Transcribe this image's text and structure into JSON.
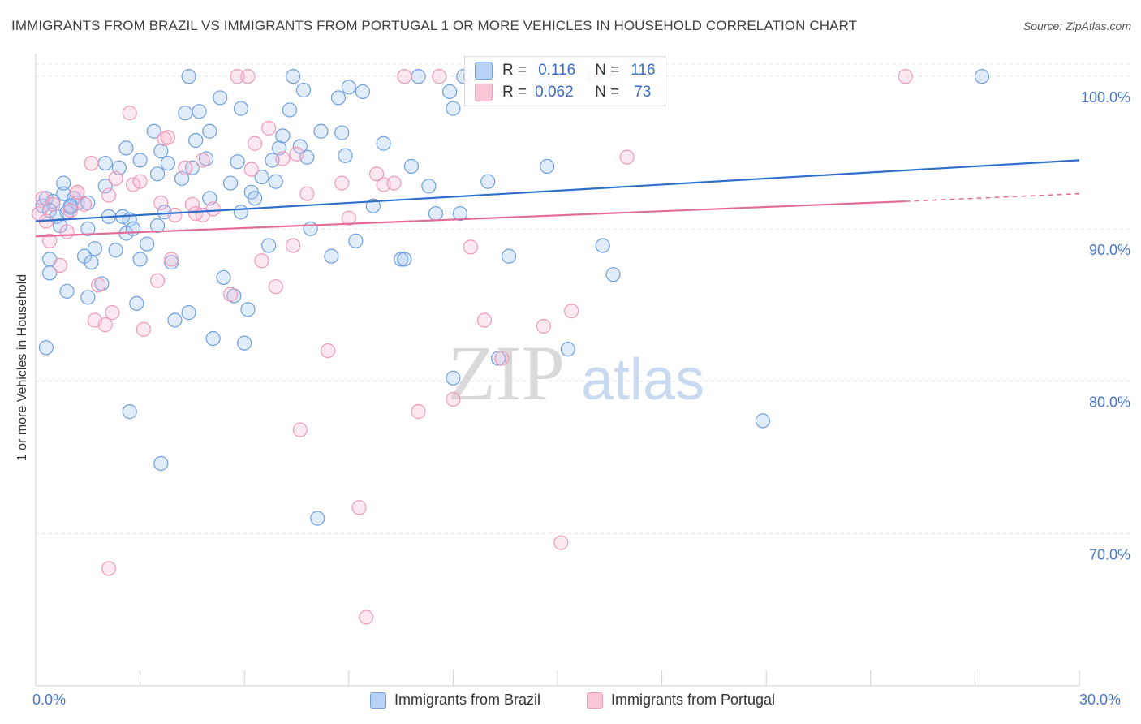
{
  "title": "IMMIGRANTS FROM BRAZIL VS IMMIGRANTS FROM PORTUGAL 1 OR MORE VEHICLES IN HOUSEHOLD CORRELATION CHART",
  "source": "Source: ZipAtlas.com",
  "watermark": {
    "zip": "ZIP",
    "atlas": "atlas"
  },
  "stats": [
    {
      "r_label": "R =",
      "r_value": "0.116",
      "n_label": "N =",
      "n_value": "116"
    },
    {
      "r_label": "R =",
      "r_value": "0.062",
      "n_label": "N =",
      "n_value": "73"
    }
  ],
  "chart_data": {
    "type": "scatter",
    "title": "IMMIGRANTS FROM BRAZIL VS IMMIGRANTS FROM PORTUGAL 1 OR MORE VEHICLES IN HOUSEHOLD CORRELATION CHART",
    "xlabel": "",
    "ylabel": "1 or more Vehicles in Household",
    "xlim": [
      0,
      30
    ],
    "ylim": [
      60,
      101.5
    ],
    "x_tick_labels": [
      "0.0%",
      "30.0%"
    ],
    "y_ticks": [
      70,
      80,
      90,
      100
    ],
    "y_tick_labels": [
      "70.0%",
      "80.0%",
      "90.0%",
      "100.0%"
    ],
    "grid": true,
    "series": [
      {
        "name": "Immigrants from Brazil",
        "color": "#6f9fe0",
        "line_color": "#2f6fcc",
        "trend": {
          "x0": 0,
          "y0": 90.5,
          "x1": 30,
          "y1": 94.5
        },
        "points": [
          [
            0.2,
            91.5
          ],
          [
            0.3,
            92.0
          ],
          [
            0.5,
            91.8
          ],
          [
            0.4,
            91.2
          ],
          [
            0.6,
            90.8
          ],
          [
            0.8,
            92.3
          ],
          [
            0.9,
            91.1
          ],
          [
            1.0,
            91.4
          ],
          [
            1.1,
            92.0
          ],
          [
            1.2,
            91.7
          ],
          [
            0.7,
            90.2
          ],
          [
            0.9,
            85.9
          ],
          [
            1.5,
            90.0
          ],
          [
            1.5,
            85.5
          ],
          [
            1.4,
            88.2
          ],
          [
            1.6,
            87.8
          ],
          [
            1.7,
            88.7
          ],
          [
            2.0,
            92.8
          ],
          [
            2.0,
            94.3
          ],
          [
            1.9,
            86.4
          ],
          [
            2.1,
            90.8
          ],
          [
            2.4,
            94.0
          ],
          [
            2.3,
            88.6
          ],
          [
            2.5,
            90.8
          ],
          [
            2.6,
            89.7
          ],
          [
            2.7,
            90.6
          ],
          [
            2.8,
            90.0
          ],
          [
            2.9,
            85.1
          ],
          [
            2.6,
            95.3
          ],
          [
            3.0,
            94.5
          ],
          [
            3.2,
            89.0
          ],
          [
            3.4,
            96.4
          ],
          [
            3.5,
            93.6
          ],
          [
            3.6,
            95.1
          ],
          [
            3.7,
            91.1
          ],
          [
            3.8,
            94.3
          ],
          [
            3.9,
            87.8
          ],
          [
            4.0,
            84.0
          ],
          [
            4.2,
            93.3
          ],
          [
            4.4,
            84.5
          ],
          [
            4.3,
            97.6
          ],
          [
            4.5,
            94.0
          ],
          [
            4.6,
            95.8
          ],
          [
            4.7,
            97.7
          ],
          [
            4.9,
            94.6
          ],
          [
            5.0,
            96.4
          ],
          [
            5.1,
            82.8
          ],
          [
            5.3,
            98.6
          ],
          [
            5.4,
            86.8
          ],
          [
            5.6,
            93.0
          ],
          [
            5.7,
            85.6
          ],
          [
            5.8,
            94.4
          ],
          [
            5.9,
            97.9
          ],
          [
            6.0,
            82.5
          ],
          [
            6.1,
            84.7
          ],
          [
            6.2,
            92.4
          ],
          [
            6.3,
            92.0
          ],
          [
            6.5,
            93.4
          ],
          [
            6.7,
            88.9
          ],
          [
            6.8,
            94.5
          ],
          [
            6.9,
            93.1
          ],
          [
            7.0,
            95.3
          ],
          [
            7.1,
            96.1
          ],
          [
            7.3,
            97.8
          ],
          [
            7.4,
            100.0
          ],
          [
            7.6,
            95.4
          ],
          [
            7.7,
            99.1
          ],
          [
            7.8,
            94.7
          ],
          [
            7.9,
            90.0
          ],
          [
            8.1,
            71.0
          ],
          [
            8.2,
            96.4
          ],
          [
            8.5,
            88.2
          ],
          [
            8.7,
            98.6
          ],
          [
            8.8,
            96.3
          ],
          [
            8.9,
            94.8
          ],
          [
            9.0,
            99.3
          ],
          [
            9.2,
            89.2
          ],
          [
            9.4,
            99.0
          ],
          [
            9.7,
            91.5
          ],
          [
            10.0,
            95.6
          ],
          [
            10.5,
            88.0
          ],
          [
            10.6,
            88.0
          ],
          [
            10.8,
            94.1
          ],
          [
            11.0,
            100.0
          ],
          [
            11.3,
            92.8
          ],
          [
            11.5,
            91.0
          ],
          [
            11.9,
            99.0
          ],
          [
            12.0,
            97.9
          ],
          [
            12.5,
            100.0
          ],
          [
            12.2,
            91.0
          ],
          [
            12.0,
            80.2
          ],
          [
            12.3,
            100.0
          ],
          [
            13.0,
            93.1
          ],
          [
            13.3,
            81.5
          ],
          [
            13.6,
            88.2
          ],
          [
            14.6,
            100.0
          ],
          [
            14.7,
            94.1
          ],
          [
            15.3,
            82.1
          ],
          [
            16.1,
            100.0
          ],
          [
            16.3,
            88.9
          ],
          [
            16.6,
            87.0
          ],
          [
            20.9,
            77.4
          ],
          [
            27.2,
            100.0
          ],
          [
            3.0,
            88.0
          ],
          [
            3.6,
            74.6
          ],
          [
            2.7,
            78.0
          ],
          [
            0.4,
            88.0
          ],
          [
            0.8,
            93.0
          ],
          [
            4.4,
            100.0
          ],
          [
            5.0,
            92.0
          ],
          [
            0.3,
            82.2
          ],
          [
            0.4,
            87.1
          ],
          [
            1.0,
            91.5
          ],
          [
            1.5,
            91.7
          ],
          [
            3.5,
            90.2
          ],
          [
            5.9,
            91.1
          ]
        ]
      },
      {
        "name": "Immigrants from Portugal",
        "color": "#f09ab8",
        "line_color": "#e36b98",
        "trend": {
          "x0": 0,
          "y0": 89.5,
          "x1": 25.0,
          "y1": 91.8,
          "dash_x1": 30,
          "dash_y1": 92.3
        },
        "points": [
          [
            0.1,
            91.0
          ],
          [
            0.2,
            92.0
          ],
          [
            0.3,
            90.5
          ],
          [
            0.5,
            91.6
          ],
          [
            0.7,
            87.6
          ],
          [
            0.9,
            89.8
          ],
          [
            1.0,
            91.2
          ],
          [
            1.2,
            92.4
          ],
          [
            1.4,
            91.6
          ],
          [
            1.6,
            94.3
          ],
          [
            1.7,
            84.0
          ],
          [
            1.8,
            86.3
          ],
          [
            2.0,
            83.7
          ],
          [
            2.1,
            92.2
          ],
          [
            2.2,
            84.5
          ],
          [
            2.3,
            93.3
          ],
          [
            2.7,
            97.6
          ],
          [
            2.8,
            92.9
          ],
          [
            3.0,
            93.1
          ],
          [
            3.1,
            83.4
          ],
          [
            3.5,
            86.6
          ],
          [
            3.6,
            91.7
          ],
          [
            3.7,
            95.9
          ],
          [
            3.8,
            96.0
          ],
          [
            3.9,
            88.0
          ],
          [
            4.0,
            90.9
          ],
          [
            4.3,
            94.0
          ],
          [
            4.5,
            91.6
          ],
          [
            4.6,
            91.0
          ],
          [
            4.8,
            94.5
          ],
          [
            5.1,
            91.3
          ],
          [
            5.6,
            85.7
          ],
          [
            5.8,
            100.0
          ],
          [
            6.1,
            100.0
          ],
          [
            6.2,
            93.9
          ],
          [
            6.3,
            95.6
          ],
          [
            6.5,
            87.9
          ],
          [
            6.7,
            96.6
          ],
          [
            6.9,
            86.2
          ],
          [
            7.1,
            94.6
          ],
          [
            7.4,
            88.9
          ],
          [
            7.5,
            94.9
          ],
          [
            7.6,
            76.8
          ],
          [
            7.8,
            92.3
          ],
          [
            8.4,
            82.0
          ],
          [
            8.8,
            93.0
          ],
          [
            9.0,
            90.7
          ],
          [
            9.3,
            71.7
          ],
          [
            9.5,
            64.5
          ],
          [
            9.8,
            93.6
          ],
          [
            10.0,
            92.9
          ],
          [
            10.3,
            93.0
          ],
          [
            10.6,
            100.0
          ],
          [
            11.0,
            78.0
          ],
          [
            11.6,
            100.0
          ],
          [
            12.0,
            78.8
          ],
          [
            12.5,
            88.8
          ],
          [
            12.9,
            84.0
          ],
          [
            13.0,
            100.0
          ],
          [
            13.4,
            81.5
          ],
          [
            13.6,
            99.0
          ],
          [
            13.9,
            100.0
          ],
          [
            14.6,
            83.6
          ],
          [
            15.4,
            84.6
          ],
          [
            15.1,
            69.4
          ],
          [
            16.0,
            100.0
          ],
          [
            16.7,
            100.0
          ],
          [
            17.0,
            94.7
          ],
          [
            25.0,
            100.0
          ],
          [
            2.1,
            67.7
          ],
          [
            0.4,
            89.2
          ],
          [
            1.2,
            92.4
          ],
          [
            4.8,
            90.9
          ]
        ]
      }
    ]
  },
  "legend": [
    "Immigrants from Brazil",
    "Immigrants from Portugal"
  ]
}
